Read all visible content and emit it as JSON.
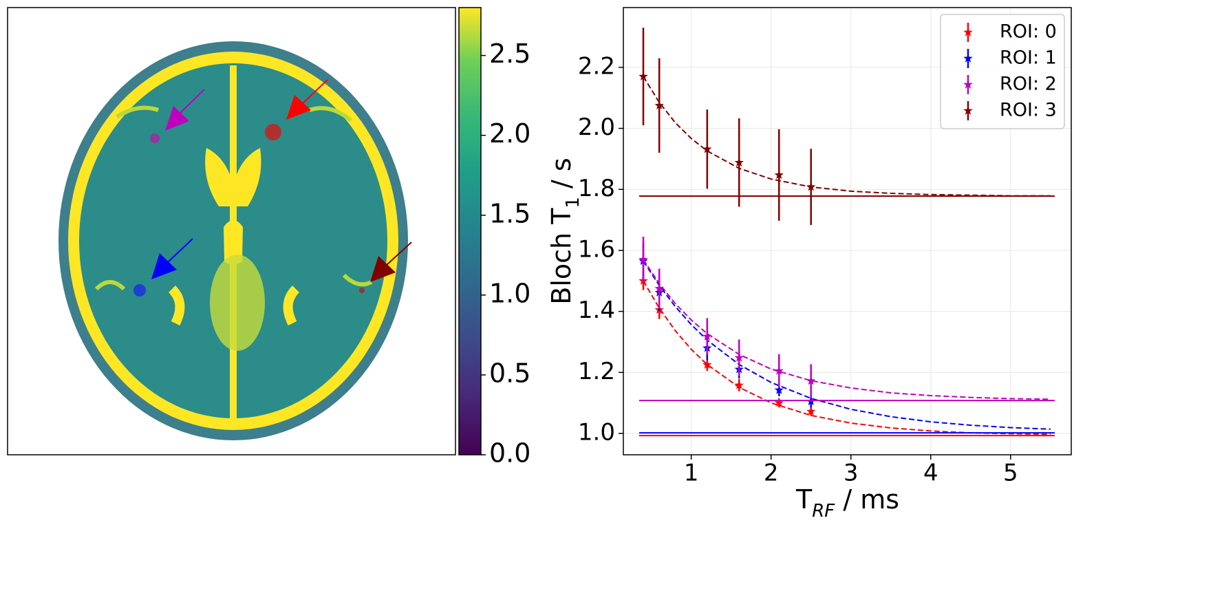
{
  "chart_data": [
    {
      "type": "image",
      "clim": [
        0,
        2.8
      ],
      "cticks": [
        {
          "value": 0,
          "label": "0.0"
        },
        0.5,
        {
          "value": 1,
          "label": "1.0"
        },
        1.5,
        {
          "value": 2,
          "label": "2.0"
        },
        2.5
      ]
    },
    {
      "type": "errorbar",
      "xlabel": {
        "main": "T",
        "sub": "RF",
        "rest": " / ms"
      },
      "ylabel": {
        "main": "Bloch T",
        "sub": "1",
        "rest": " / s"
      },
      "x": [
        0.4,
        0.6,
        1.2,
        1.6,
        2.1,
        2.5
      ],
      "fit_x": [
        0.4,
        0.6,
        0.8,
        1.0,
        1.2,
        1.6,
        2.0,
        2.5,
        3.0,
        3.5,
        4.0,
        4.5,
        5.0,
        5.5
      ],
      "xlim": [
        0.15,
        5.76
      ],
      "ylim": [
        0.93,
        2.396
      ],
      "xticks": [
        1,
        2,
        3,
        4,
        5
      ],
      "yticks": [
        {
          "value": 1,
          "label": "1.0"
        },
        1.2,
        1.4,
        1.6,
        1.8,
        {
          "value": 2,
          "label": "2.0"
        },
        2.2
      ],
      "grid": true,
      "legend": "upper right",
      "series": [
        {
          "name": "ROI: 0",
          "color": "#ff0000",
          "values": [
            1.5,
            1.405,
            1.225,
            1.158,
            1.1,
            1.072
          ],
          "errors": [
            0.03,
            0.03,
            0.02,
            0.02,
            0.015,
            0.015
          ],
          "fit": [
            1.5,
            1.411,
            1.337,
            1.276,
            1.226,
            1.151,
            1.1,
            1.059,
            1.034,
            1.018,
            1.008,
            1.002,
            0.999,
            0.997
          ],
          "reference": 0.993
        },
        {
          "name": "ROI: 1",
          "color": "#0000ff",
          "values": [
            1.565,
            1.462,
            1.28,
            1.21,
            1.142,
            1.105
          ],
          "errors": [
            0.06,
            0.06,
            0.04,
            0.03,
            0.02,
            0.02
          ],
          "fit": [
            1.565,
            1.485,
            1.416,
            1.357,
            1.306,
            1.226,
            1.167,
            1.115,
            1.079,
            1.055,
            1.038,
            1.027,
            1.019,
            1.014
          ],
          "reference": 1.002
        },
        {
          "name": "ROI: 2",
          "color": "#bf00bf",
          "values": [
            1.57,
            1.475,
            1.318,
            1.248,
            1.205,
            1.172
          ],
          "errors": [
            0.075,
            0.065,
            0.06,
            0.06,
            0.055,
            0.055
          ],
          "fit": [
            1.57,
            1.491,
            1.426,
            1.372,
            1.327,
            1.259,
            1.211,
            1.173,
            1.149,
            1.133,
            1.124,
            1.118,
            1.114,
            1.112
          ],
          "reference": 1.108
        },
        {
          "name": "ROI: 3",
          "color": "#800000",
          "values": [
            2.17,
            2.075,
            1.932,
            1.888,
            1.847,
            1.808
          ],
          "errors": [
            0.16,
            0.155,
            0.13,
            0.145,
            0.15,
            0.125
          ],
          "fit": [
            2.17,
            2.085,
            2.019,
            1.967,
            1.926,
            1.869,
            1.834,
            1.808,
            1.794,
            1.787,
            1.783,
            1.781,
            1.779,
            1.779
          ],
          "reference": 1.778
        }
      ]
    }
  ]
}
